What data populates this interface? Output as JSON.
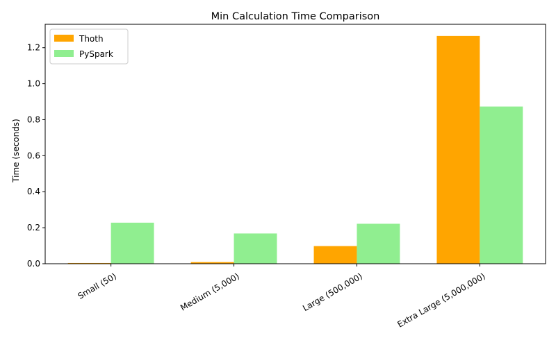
{
  "chart_data": {
    "type": "bar",
    "title": "Min Calculation Time Comparison",
    "xlabel": "",
    "ylabel": "Time (seconds)",
    "categories": [
      "Small (50)",
      "Medium (5,000)",
      "Large (500,000)",
      "Extra Large (5,000,000)"
    ],
    "series": [
      {
        "name": "Thoth",
        "color": "#ffa500",
        "values": [
          0.004,
          0.009,
          0.098,
          1.265
        ]
      },
      {
        "name": "PySpark",
        "color": "#90ee90",
        "values": [
          0.228,
          0.168,
          0.222,
          0.873
        ]
      }
    ],
    "ylim": [
      0,
      1.33
    ],
    "yticks": [
      0.0,
      0.2,
      0.4,
      0.6,
      0.8,
      1.0,
      1.2
    ],
    "ytick_labels": [
      "0.0",
      "0.2",
      "0.4",
      "0.6",
      "0.8",
      "1.0",
      "1.2"
    ],
    "grid": false,
    "legend_position": "top-left"
  }
}
